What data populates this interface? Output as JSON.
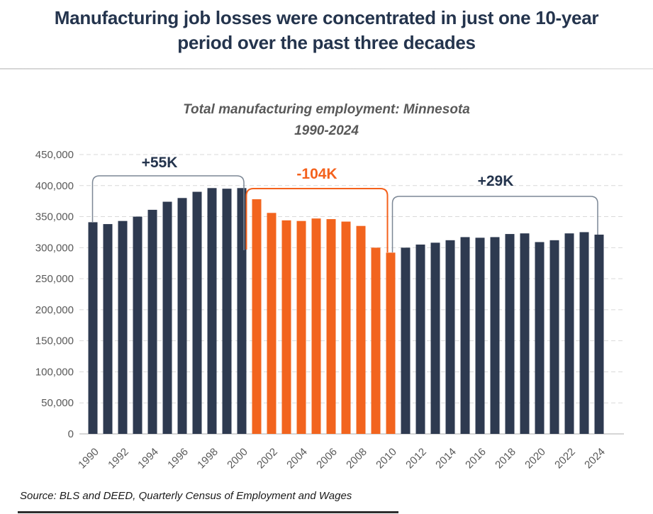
{
  "page": {
    "title": "Manufacturing job losses were concentrated in just one 10-year period over the past three decades",
    "source": "Source: BLS and DEED, Quarterly Census of Employment and Wages"
  },
  "colors": {
    "bar_navy": "#2e3a50",
    "bar_orange": "#f2641e",
    "annotation_navy_text": "#24344d",
    "annotation_orange_text": "#f4611c",
    "bracket_slate": "#7c8795",
    "axis_text_gray": "#595959",
    "gridline": "#d9d9d9",
    "axis_line": "#c8c8c8"
  },
  "chart_data": {
    "type": "bar",
    "title": "Total manufacturing employment: Minnesota",
    "subtitle": "1990-2024",
    "xlabel": "",
    "ylabel": "",
    "ylim": [
      0,
      450000
    ],
    "ytick_interval": 50000,
    "ytick_labels": [
      "0",
      "50,000",
      "100,000",
      "150,000",
      "200,000",
      "250,000",
      "300,000",
      "350,000",
      "400,000",
      "450,000"
    ],
    "xtick_labels": [
      "1990",
      "1992",
      "1994",
      "1996",
      "1998",
      "2000",
      "2002",
      "2004",
      "2006",
      "2008",
      "2010",
      "2012",
      "2014",
      "2016",
      "2018",
      "2020",
      "2022",
      "2024"
    ],
    "grid": "horizontal-dashed",
    "legend": "none",
    "x": [
      1990,
      1991,
      1992,
      1993,
      1994,
      1995,
      1996,
      1997,
      1998,
      1999,
      2000,
      2001,
      2002,
      2003,
      2004,
      2005,
      2006,
      2007,
      2008,
      2009,
      2010,
      2011,
      2012,
      2013,
      2014,
      2015,
      2016,
      2017,
      2018,
      2019,
      2020,
      2021,
      2022,
      2023,
      2024
    ],
    "values": [
      341000,
      338000,
      343000,
      350000,
      361000,
      374000,
      380000,
      390000,
      396000,
      395000,
      396000,
      378000,
      356000,
      344000,
      343000,
      347000,
      346000,
      342000,
      335000,
      300000,
      292000,
      300000,
      305000,
      308000,
      312000,
      317000,
      316000,
      317000,
      322000,
      323000,
      309000,
      312000,
      323000,
      325000,
      321000
    ],
    "highlight_range": [
      2001,
      2010
    ],
    "annotations": [
      {
        "label": "+55K",
        "from": 1990,
        "to": 2000,
        "text_color": "#24344d",
        "line_color": "#7c8795"
      },
      {
        "label": "-104K",
        "from": 2000,
        "to": 2010,
        "text_color": "#f4611c",
        "line_color": "#f4611c"
      },
      {
        "label": "+29K",
        "from": 2010,
        "to": 2024,
        "text_color": "#24344d",
        "line_color": "#7c8795"
      }
    ]
  }
}
